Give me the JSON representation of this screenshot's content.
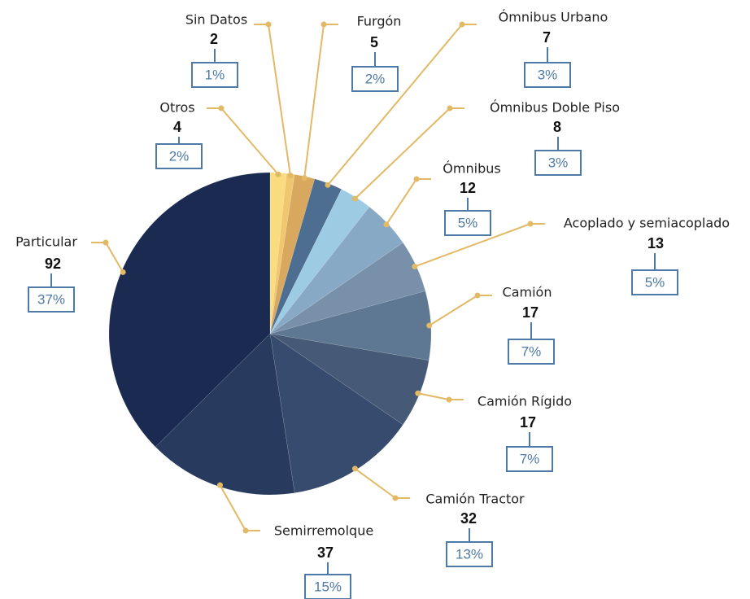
{
  "chart_data": {
    "type": "pie",
    "categories": [
      "Otros",
      "Sin Datos",
      "Furgón",
      "Ómnibus Urbano",
      "Ómnibus Doble Piso",
      "Ómnibus",
      "Acoplado y semiacoplado",
      "Camión",
      "Camión Rígido",
      "Camión Tractor",
      "Semirremolque",
      "Particular"
    ],
    "values": [
      4,
      2,
      5,
      7,
      8,
      12,
      13,
      17,
      17,
      32,
      37,
      92
    ],
    "percent_labels": [
      "2%",
      "1%",
      "2%",
      "3%",
      "3%",
      "5%",
      "5%",
      "7%",
      "7%",
      "13%",
      "15%",
      "37%"
    ],
    "colors": [
      "#f9dc7f",
      "#f0c66e",
      "#d8a85e",
      "#4d6d91",
      "#9ecbe4",
      "#88a9c6",
      "#7890aa",
      "#5e7793",
      "#465a77",
      "#364b6d",
      "#283a5e",
      "#1b2a50"
    ]
  }
}
